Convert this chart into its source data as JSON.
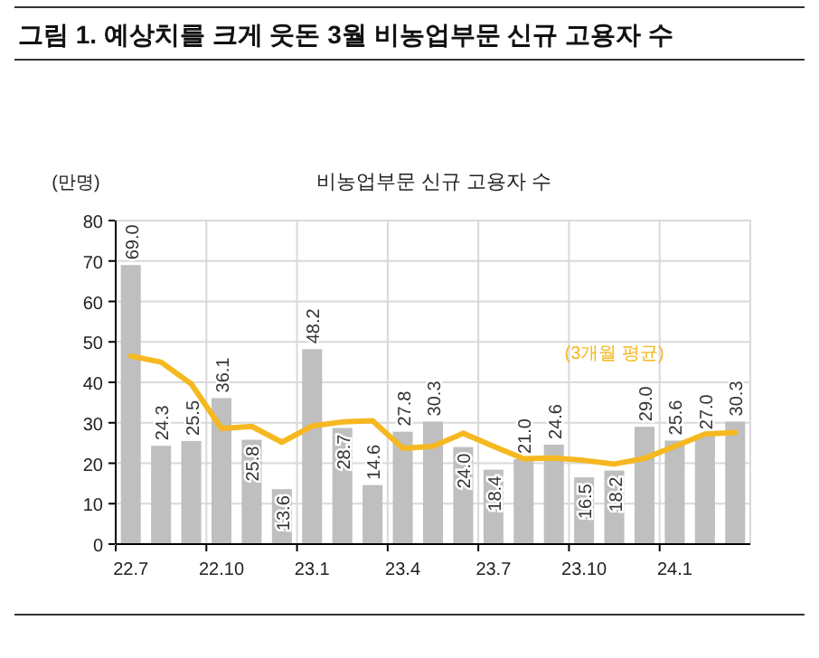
{
  "chart_data": {
    "type": "bar",
    "title": "그림 1. 예상치를 크게 웃돈 3월 비농업부문 신규 고용자 수",
    "subtitle": "비농업부문 신규 고용자 수",
    "ylabel": "(만명)",
    "categories": [
      "22.7",
      null,
      null,
      "22.10",
      null,
      null,
      "23.1",
      null,
      null,
      "23.4",
      null,
      null,
      "23.7",
      null,
      null,
      "23.10",
      null,
      null,
      "24.1",
      null,
      null
    ],
    "series": [
      {
        "color": "#bfbfbf",
        "values": [
          69.0,
          24.3,
          25.5,
          36.1,
          25.8,
          13.6,
          48.2,
          28.7,
          14.6,
          27.8,
          30.3,
          24.0,
          18.4,
          21.0,
          24.6,
          16.5,
          18.2,
          29.0,
          25.6,
          27.0,
          30.3
        ],
        "value_labels": [
          "69.0",
          "24.3",
          "25.5",
          "36.1",
          "25.8",
          "13.6",
          "48.2",
          "28.7",
          "14.6",
          "27.8",
          "30.3",
          "24.0",
          "18.4",
          "21.0",
          "24.6",
          "16.5",
          "18.2",
          "29.0",
          "25.6",
          "27.0",
          "30.3"
        ]
      },
      {
        "type": "line",
        "name": "(3개월 평균)",
        "color": "#f5b820",
        "values": [
          46.5,
          45.0,
          39.6,
          28.6,
          29.1,
          25.2,
          29.2,
          30.2,
          30.5,
          23.7,
          24.2,
          27.4,
          24.2,
          21.1,
          21.3,
          20.7,
          19.8,
          21.2,
          24.2,
          27.2,
          27.6
        ]
      }
    ],
    "ylim": [
      0,
      80
    ],
    "yticks": [
      0,
      10,
      20,
      30,
      40,
      50,
      60,
      70,
      80
    ],
    "grid": true
  }
}
